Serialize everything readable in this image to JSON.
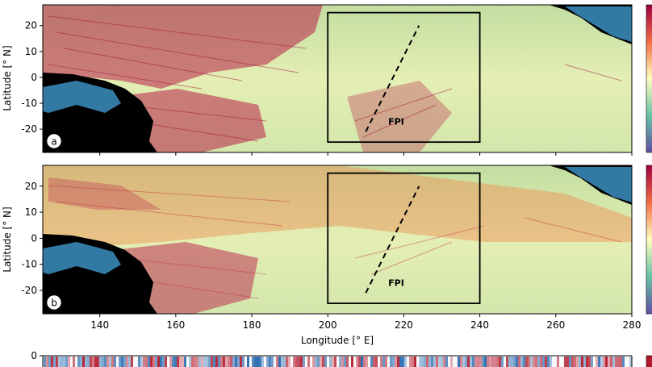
{
  "chart_data": [
    {
      "type": "heatmap",
      "panel_label": "a",
      "ylabel": "Latitude [$^\\circ$ N]",
      "xlim": [
        125,
        280
      ],
      "ylim": [
        -29,
        28
      ],
      "yticks": [
        -20,
        -10,
        0,
        10,
        20
      ],
      "xticks": [
        140,
        160,
        180,
        200,
        220,
        240,
        260,
        280
      ],
      "box": {
        "lon": [
          200,
          240
        ],
        "lat": [
          -25,
          25
        ]
      },
      "transect": {
        "lon": [
          210,
          224
        ],
        "lat": [
          -21,
          20
        ]
      },
      "annotation": {
        "text": "FPI",
        "lon": 218,
        "lat": -17
      }
    },
    {
      "type": "heatmap",
      "panel_label": "b",
      "ylabel": "Latitude [$^\\circ$ N]",
      "xlabel": "Longitude [$^\\circ$ E]",
      "xlim": [
        125,
        280
      ],
      "ylim": [
        -29,
        28
      ],
      "yticks": [
        -20,
        -10,
        0,
        10,
        20
      ],
      "xticks": [
        140,
        160,
        180,
        200,
        220,
        240,
        260,
        280
      ],
      "box": {
        "lon": [
          200,
          240
        ],
        "lat": [
          -25,
          25
        ]
      },
      "transect": {
        "lon": [
          210,
          224
        ],
        "lat": [
          -21,
          20
        ]
      },
      "annotation": {
        "text": "FPI",
        "lon": 218,
        "lat": -17
      }
    },
    {
      "type": "heatmap",
      "panel_label": "",
      "yticks": [
        0
      ],
      "partially_visible": true
    }
  ],
  "display": {
    "ylabel_text": "Latitude [° N]",
    "xlabel_text": "Longitude [° E]"
  },
  "colors": {
    "land": "#000000",
    "base": "#dcecae",
    "warm": "#b81a44",
    "orange": "#f08a4b",
    "cool": "#3b8fc0",
    "diverging_red": "#b2182b",
    "diverging_blue": "#2166ac"
  }
}
